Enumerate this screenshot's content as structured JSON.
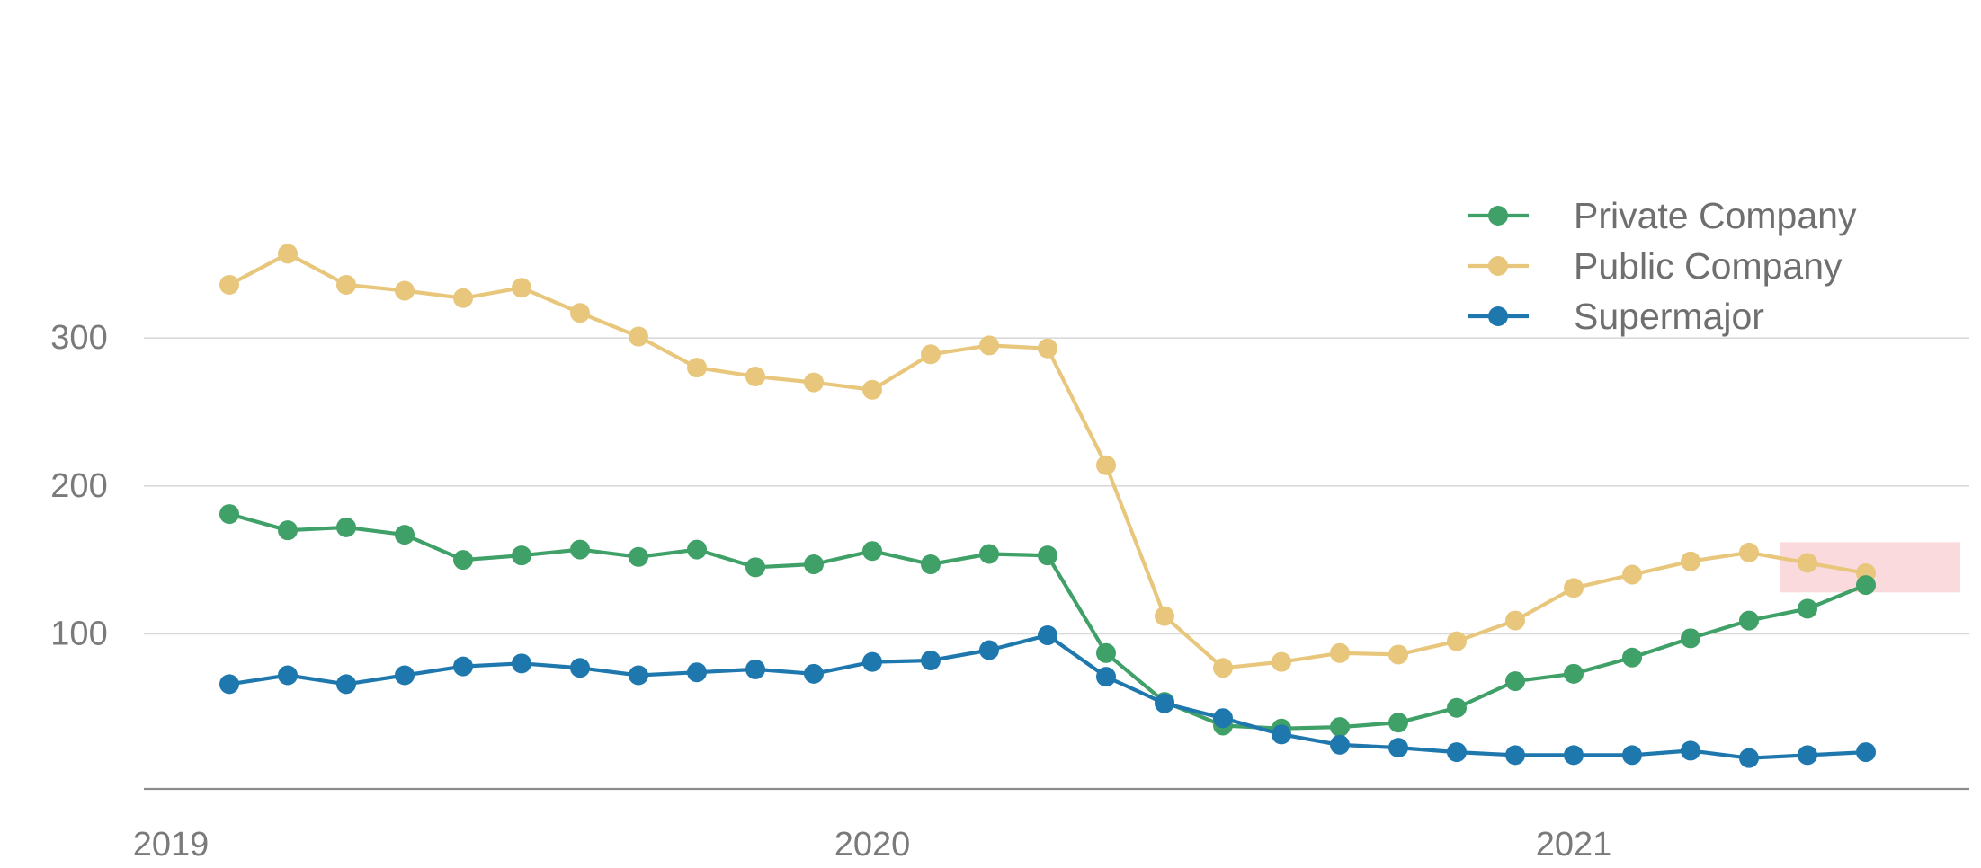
{
  "chart_data": {
    "type": "line",
    "title": "",
    "xlabel": "",
    "ylabel": "",
    "x": [
      "2019-02",
      "2019-03",
      "2019-04",
      "2019-05",
      "2019-06",
      "2019-07",
      "2019-08",
      "2019-09",
      "2019-10",
      "2019-11",
      "2019-12",
      "2020-01",
      "2020-02",
      "2020-03",
      "2020-04",
      "2020-05",
      "2020-06",
      "2020-07",
      "2020-08",
      "2020-09",
      "2020-10",
      "2020-11",
      "2020-12",
      "2021-01",
      "2021-02",
      "2021-03",
      "2021-04",
      "2021-05",
      "2021-06",
      "2021-07"
    ],
    "series": [
      {
        "name": "Public Company",
        "color": "#e8c77d",
        "values": [
          336,
          357,
          336,
          332,
          327,
          334,
          317,
          301,
          280,
          274,
          270,
          265,
          289,
          295,
          293,
          214,
          112,
          77,
          81,
          87,
          86,
          95,
          109,
          131,
          140,
          149,
          155,
          148,
          141,
          null
        ]
      },
      {
        "name": "Private Company",
        "color": "#3fa068",
        "values": [
          181,
          170,
          172,
          167,
          150,
          153,
          157,
          152,
          157,
          145,
          147,
          156,
          147,
          154,
          153,
          87,
          54,
          38,
          36,
          37,
          40,
          50,
          68,
          73,
          84,
          97,
          109,
          117,
          133,
          null
        ]
      },
      {
        "name": "Supermajor",
        "color": "#1f78ad",
        "values": [
          66,
          72,
          66,
          72,
          78,
          80,
          77,
          72,
          74,
          76,
          73,
          81,
          82,
          89,
          99,
          71,
          53,
          43,
          32,
          25,
          23,
          20,
          18,
          18,
          18,
          21,
          16,
          18,
          20,
          null
        ]
      }
    ],
    "x_ticks": [
      "2019",
      "2020",
      "2021"
    ],
    "y_ticks": [
      100,
      200,
      300
    ],
    "xlim": [
      "2019-01",
      "2021-08"
    ],
    "ylim": [
      0,
      380
    ],
    "grid": true,
    "legend_position": "right",
    "highlight": {
      "x_range": [
        "2021-05",
        "2021-07"
      ],
      "y_range": [
        128,
        162
      ],
      "color": "#f9d6d9"
    }
  }
}
